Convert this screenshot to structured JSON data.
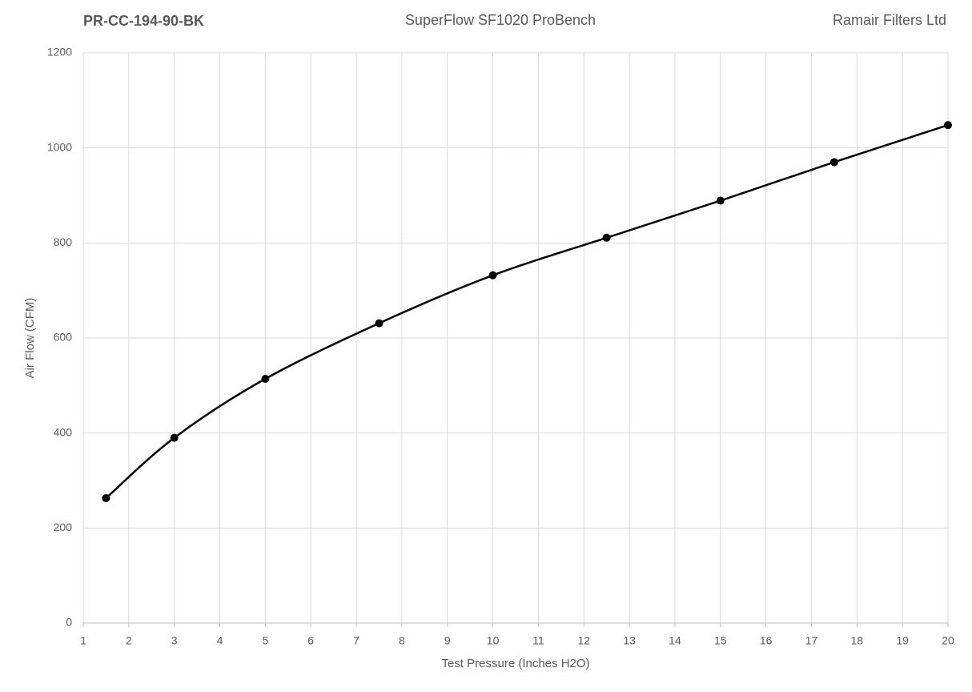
{
  "chart_data": {
    "type": "line",
    "title": "SuperFlow SF1020 ProBench",
    "part_number": "PR-CC-194-90-BK",
    "company": "Ramair Filters Ltd",
    "x_label": "Test Pressure (Inches H2O)",
    "y_label": "Air Flow (CFM)",
    "x": [
      1.5,
      3,
      5,
      7.5,
      10,
      12.5,
      15,
      17.5,
      20
    ],
    "series": [
      {
        "color": "#000000",
        "values": [
          263,
          390,
          514,
          631,
          732,
          811,
          889,
          970,
          1048
        ]
      }
    ],
    "xlim": [
      1,
      20
    ],
    "xticks": [
      1,
      2,
      3,
      4,
      5,
      6,
      7,
      8,
      9,
      10,
      11,
      12,
      13,
      14,
      15,
      16,
      17,
      18,
      19,
      20
    ],
    "ylim": [
      0,
      1200
    ],
    "yticks": [
      0,
      200,
      400,
      600,
      800,
      1000,
      1200
    ],
    "grid": true,
    "smooth": true,
    "markers": true
  }
}
